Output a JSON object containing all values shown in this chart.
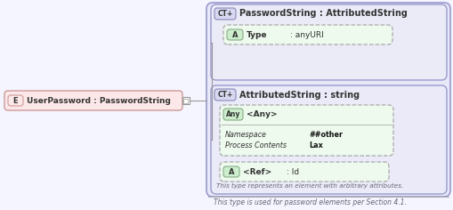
{
  "bg_color": "#f5f5ff",
  "outer_bg": "#e8e8f8",
  "inner_bg": "#eaeaf8",
  "green_node_bg": "#eefaee",
  "green_node_border": "#99bb99",
  "red_node_bg": "#fce8e8",
  "red_node_border": "#cc9999",
  "blue_border": "#9999cc",
  "ct_badge_bg": "#d8d8f0",
  "ct_badge_border": "#8888bb",
  "a_badge_bg": "#cceecc",
  "a_badge_border": "#88aa88",
  "any_badge_bg": "#cceecc",
  "any_badge_border": "#88aa88",
  "e_badge_bg": "#fce8e8",
  "e_badge_border": "#cc9999",
  "line_color": "#999999",
  "dash_color": "#aaaaaa",
  "text_color": "#333333",
  "note_color": "#666677",
  "bold_color": "#111111",
  "white": "#ffffff",
  "main_label": "UserPassword : PasswordString",
  "ct1_label": "PasswordString : AttributedString",
  "ct2_label": "AttributedString : string",
  "type_label": "Type",
  "type_value": ": anyURI",
  "any_label": "<Any>",
  "ns_label": "Namespace",
  "ns_value": "##other",
  "proc_label": "Process Contents",
  "proc_value": "Lax",
  "ref_label": "<Ref>",
  "ref_value": ": Id",
  "inner_note": "This type represents an element with arbitrary attributes.",
  "outer_note": "This type is used for password elements per Section 4.1."
}
